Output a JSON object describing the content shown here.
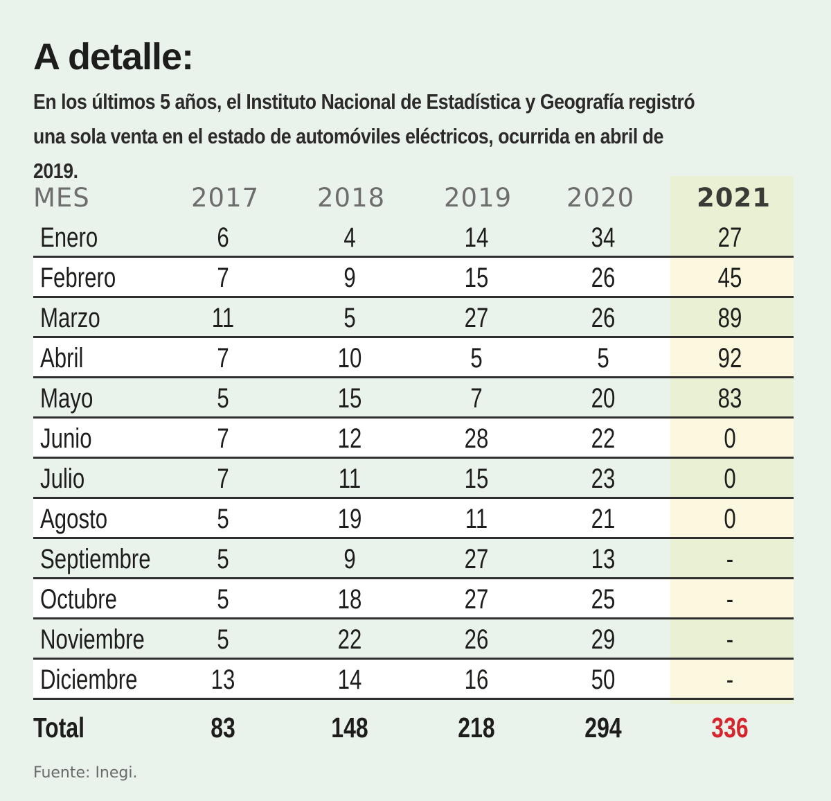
{
  "title": "A detalle:",
  "subtitle_line1": "En los últimos 5 años, el Instituto Nacional de Estadística y Geografía registró",
  "subtitle_line2": "una sola venta en el estado de automóviles eléctricos, ocurrida en abril de 2019.",
  "header": [
    "MES",
    "2017",
    "2018",
    "2019",
    "2020",
    "2021"
  ],
  "rows": [
    [
      "Enero",
      "6",
      "4",
      "14",
      "34",
      "27"
    ],
    [
      "Febrero",
      "7",
      "9",
      "15",
      "26",
      "45"
    ],
    [
      "Marzo",
      "11",
      "5",
      "27",
      "26",
      "89"
    ],
    [
      "Abril",
      "7",
      "10",
      "5",
      "5",
      "92"
    ],
    [
      "Mayo",
      "5",
      "15",
      "7",
      "20",
      "83"
    ],
    [
      "Junio",
      "7",
      "12",
      "28",
      "22",
      "0"
    ],
    [
      "Julio",
      "7",
      "11",
      "15",
      "23",
      "0"
    ],
    [
      "Agosto",
      "5",
      "19",
      "11",
      "21",
      "0"
    ],
    [
      "Septiembre",
      "5",
      "9",
      "27",
      "13",
      "-"
    ],
    [
      "Octubre",
      "5",
      "18",
      "27",
      "25",
      "-"
    ],
    [
      "Noviembre",
      "5",
      "22",
      "26",
      "29",
      "-"
    ],
    [
      "Diciembre",
      "13",
      "14",
      "16",
      "50",
      "-"
    ]
  ],
  "total": [
    "Total",
    "83",
    "148",
    "218",
    "294",
    "336"
  ],
  "source": "Fuente: Inegi.",
  "colors": {
    "background": "#eaf2ec",
    "highlight_column": "#eaf0d3",
    "total_2021": "#d6262d"
  }
}
